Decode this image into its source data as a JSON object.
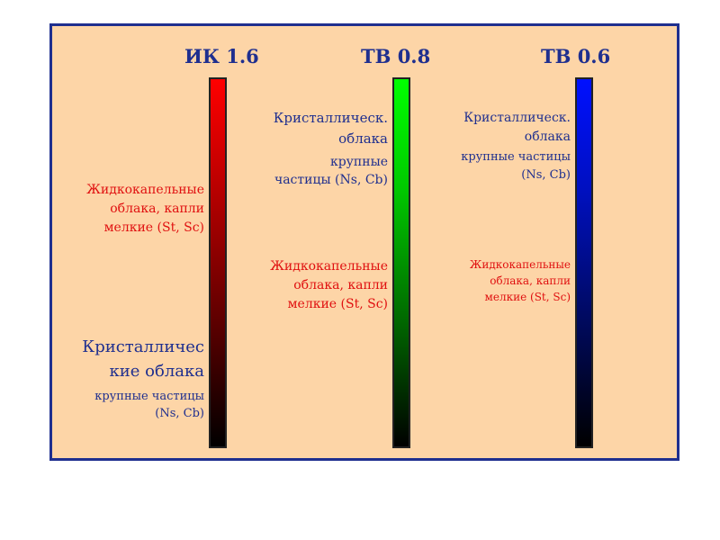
{
  "columns": [
    {
      "title": "ИК 1.6",
      "bar_color": "#ff0000"
    },
    {
      "title": "ТВ 0.8",
      "bar_color": "#00ff00"
    },
    {
      "title": "ТВ 0.6",
      "bar_color": "#0010ff"
    }
  ],
  "ir": {
    "liquid": [
      "Жидкокапельные",
      "облака, капли",
      "мелкие (St, Sc)"
    ],
    "crystal_title": [
      "Кристалличес",
      "кие облака"
    ],
    "crystal_sub": [
      "крупные частицы",
      "(Ns, Cb)"
    ]
  },
  "tv08": {
    "crystal_title": [
      "Кристаллическ.",
      "облака"
    ],
    "crystal_sub": [
      "крупные",
      "частицы (Ns, Cb)"
    ],
    "liquid": [
      "Жидкокапельные",
      "облака, капли",
      "мелкие (St, Sc)"
    ]
  },
  "tv06": {
    "crystal_title": [
      "Кристаллическ.",
      "облака"
    ],
    "crystal_sub": [
      "крупные частицы",
      "(Ns, Cb)"
    ],
    "liquid": [
      "Жидкокапельные",
      "облака, капли",
      "мелкие (St, Sc)"
    ]
  }
}
